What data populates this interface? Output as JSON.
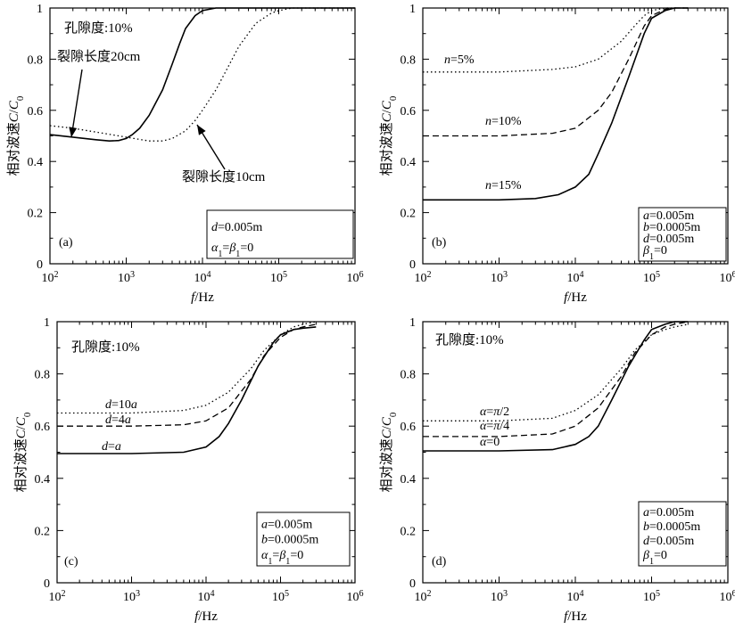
{
  "figure": {
    "panels": [
      {
        "id": "a",
        "panel_label": "(a)",
        "ylabel": "相对波速C/C₀",
        "xlabel": "f/Hz",
        "x_tick_labels": [
          "10²",
          "10³",
          "10⁴",
          "10⁵",
          "10⁶"
        ],
        "y_tick_labels": [
          "0",
          "0.2",
          "0.4",
          "0.6",
          "0.8",
          "1"
        ],
        "header_text": "孔隙度:10%",
        "param_lines": [
          "d=0.005m",
          "α₁=β₁=0"
        ],
        "annotations": [
          "裂隙长度20cm",
          "裂隙长度10cm"
        ]
      },
      {
        "id": "b",
        "panel_label": "(b)",
        "ylabel": "相对波速C/C₀",
        "xlabel": "f/Hz",
        "x_tick_labels": [
          "10²",
          "10³",
          "10⁴",
          "10⁵",
          "10⁶"
        ],
        "y_tick_labels": [
          "0",
          "0.2",
          "0.4",
          "0.6",
          "0.8",
          "1"
        ],
        "header_text": "",
        "param_lines": [
          "a=0.005m",
          "b=0.0005m",
          "d=0.005m",
          "β₁=0"
        ],
        "annotations": []
      },
      {
        "id": "c",
        "panel_label": "(c)",
        "ylabel": "相对波速C/C₀",
        "xlabel": "f/Hz",
        "x_tick_labels": [
          "10²",
          "10³",
          "10⁴",
          "10⁵",
          "10⁶"
        ],
        "y_tick_labels": [
          "0",
          "0.2",
          "0.4",
          "0.6",
          "0.8",
          "1"
        ],
        "header_text": "孔隙度:10%",
        "param_lines": [
          "a=0.005m",
          "b=0.0005m",
          "α₁=β₁=0"
        ],
        "annotations": []
      },
      {
        "id": "d",
        "panel_label": "(d)",
        "ylabel": "相对波速C/C₀",
        "xlabel": "f/Hz",
        "x_tick_labels": [
          "10²",
          "10³",
          "10⁴",
          "10⁵",
          "10⁶"
        ],
        "y_tick_labels": [
          "0",
          "0.2",
          "0.4",
          "0.6",
          "0.8",
          "1"
        ],
        "header_text": "孔隙度:10%",
        "param_lines": [
          "a=0.005m",
          "b=0.0005m",
          "d=0.005m",
          "β₁=0"
        ],
        "annotations": []
      }
    ]
  },
  "chart_data": [
    {
      "type": "line",
      "panel": "(a)",
      "xscale": "log",
      "xlim": [
        100,
        1000000
      ],
      "ylim": [
        0,
        1
      ],
      "xlabel": "f/Hz",
      "ylabel": "相对波速C/C₀",
      "series": [
        {
          "style": "solid",
          "x": [
            100,
            200,
            400,
            600,
            800,
            1000,
            1200,
            1500,
            2000,
            3000,
            4000,
            5000,
            6000,
            8000,
            10000,
            15000,
            20000,
            50000,
            100000,
            1000000
          ],
          "y": [
            0.505,
            0.495,
            0.485,
            0.48,
            0.482,
            0.49,
            0.505,
            0.53,
            0.58,
            0.68,
            0.78,
            0.86,
            0.92,
            0.97,
            0.99,
            1.0,
            1.0,
            1.0,
            1.0,
            1.0
          ]
        },
        {
          "style": "dotted",
          "x": [
            100,
            200,
            500,
            1000,
            2000,
            3000,
            4000,
            6000,
            8000,
            10000,
            15000,
            20000,
            30000,
            50000,
            80000,
            100000,
            150000,
            300000,
            1000000
          ],
          "y": [
            0.54,
            0.53,
            0.51,
            0.495,
            0.48,
            0.48,
            0.49,
            0.52,
            0.56,
            0.6,
            0.68,
            0.75,
            0.85,
            0.94,
            0.98,
            0.99,
            1.0,
            1.0,
            1.0
          ]
        }
      ]
    },
    {
      "type": "line",
      "panel": "(b)",
      "xscale": "log",
      "xlim": [
        100,
        1000000
      ],
      "ylim": [
        0,
        1
      ],
      "xlabel": "f/Hz",
      "ylabel": "相对波速C/C₀",
      "series": [
        {
          "name": "n=5%",
          "style": "dotted",
          "x": [
            100,
            1000,
            5000,
            10000,
            20000,
            40000,
            60000,
            80000,
            100000,
            150000,
            200000,
            300000
          ],
          "y": [
            0.75,
            0.75,
            0.76,
            0.77,
            0.8,
            0.87,
            0.93,
            0.97,
            0.99,
            1.0,
            1.0,
            1.0
          ]
        },
        {
          "name": "n=10%",
          "style": "dashed",
          "x": [
            100,
            1000,
            5000,
            10000,
            20000,
            30000,
            50000,
            80000,
            100000,
            150000,
            200000,
            300000
          ],
          "y": [
            0.5,
            0.5,
            0.51,
            0.53,
            0.6,
            0.67,
            0.8,
            0.93,
            0.97,
            0.995,
            1.0,
            1.0
          ]
        },
        {
          "name": "n=15%",
          "style": "solid",
          "x": [
            100,
            1000,
            3000,
            6000,
            10000,
            15000,
            20000,
            30000,
            50000,
            80000,
            100000,
            150000,
            200000,
            300000
          ],
          "y": [
            0.25,
            0.25,
            0.255,
            0.27,
            0.3,
            0.35,
            0.43,
            0.55,
            0.73,
            0.9,
            0.96,
            0.99,
            1.0,
            1.0
          ]
        }
      ]
    },
    {
      "type": "line",
      "panel": "(c)",
      "xscale": "log",
      "xlim": [
        100,
        1000000
      ],
      "ylim": [
        0,
        1
      ],
      "xlabel": "f/Hz",
      "ylabel": "相对波速C/C₀",
      "series": [
        {
          "name": "d=10a",
          "style": "dotted",
          "x": [
            100,
            1000,
            5000,
            10000,
            20000,
            40000,
            60000,
            100000,
            150000,
            200000,
            300000
          ],
          "y": [
            0.65,
            0.65,
            0.66,
            0.68,
            0.73,
            0.82,
            0.89,
            0.95,
            0.98,
            0.99,
            1.0
          ]
        },
        {
          "name": "d=4a",
          "style": "dashed",
          "x": [
            100,
            1000,
            5000,
            10000,
            20000,
            40000,
            60000,
            100000,
            150000,
            200000,
            300000
          ],
          "y": [
            0.6,
            0.6,
            0.605,
            0.62,
            0.67,
            0.78,
            0.87,
            0.94,
            0.97,
            0.98,
            0.99
          ]
        },
        {
          "name": "d=a",
          "style": "solid",
          "x": [
            100,
            1000,
            5000,
            10000,
            15000,
            20000,
            30000,
            50000,
            80000,
            100000,
            150000,
            200000,
            300000
          ],
          "y": [
            0.495,
            0.495,
            0.5,
            0.52,
            0.56,
            0.61,
            0.7,
            0.83,
            0.92,
            0.95,
            0.97,
            0.975,
            0.98
          ]
        }
      ]
    },
    {
      "type": "line",
      "panel": "(d)",
      "xscale": "log",
      "xlim": [
        100,
        1000000
      ],
      "ylim": [
        0,
        1
      ],
      "xlabel": "f/Hz",
      "ylabel": "相对波速C/C₀",
      "series": [
        {
          "name": "α=π/2",
          "style": "dotted",
          "x": [
            100,
            1000,
            5000,
            10000,
            20000,
            40000,
            60000,
            100000,
            150000,
            200000,
            300000
          ],
          "y": [
            0.62,
            0.62,
            0.63,
            0.66,
            0.72,
            0.82,
            0.89,
            0.95,
            0.97,
            0.98,
            0.99
          ]
        },
        {
          "name": "α=π/4",
          "style": "dashed",
          "x": [
            100,
            1000,
            5000,
            10000,
            20000,
            40000,
            60000,
            100000,
            150000,
            200000,
            300000
          ],
          "y": [
            0.56,
            0.56,
            0.57,
            0.6,
            0.67,
            0.79,
            0.88,
            0.95,
            0.98,
            0.99,
            1.0
          ]
        },
        {
          "name": "α=0",
          "style": "solid",
          "x": [
            100,
            1000,
            5000,
            10000,
            15000,
            20000,
            30000,
            50000,
            80000,
            100000,
            150000,
            200000,
            300000
          ],
          "y": [
            0.505,
            0.505,
            0.51,
            0.53,
            0.56,
            0.6,
            0.7,
            0.83,
            0.93,
            0.97,
            0.99,
            1.0,
            1.0
          ]
        }
      ]
    }
  ]
}
